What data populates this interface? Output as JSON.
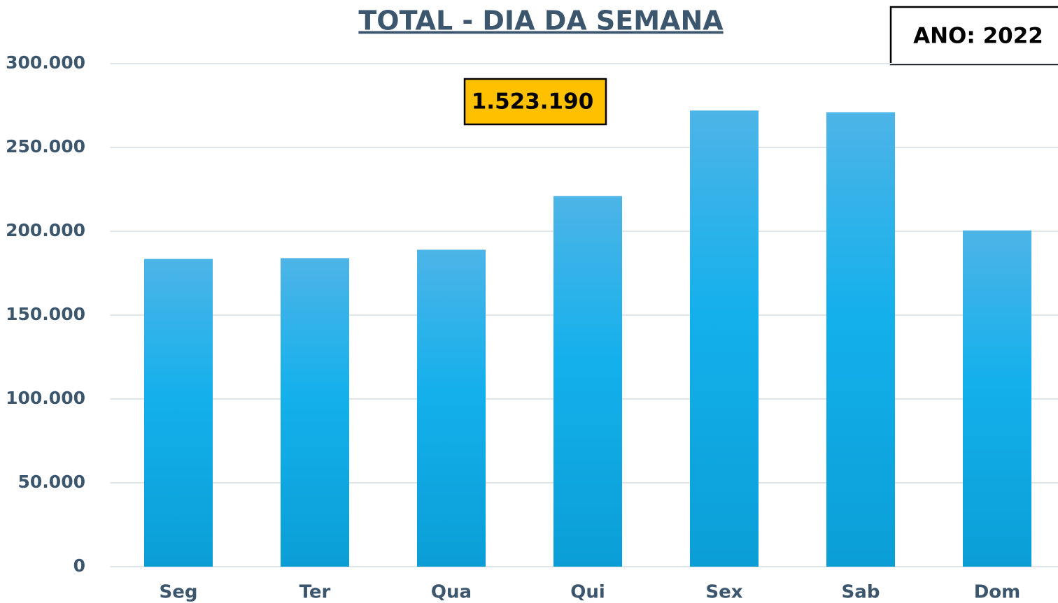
{
  "chart_data": {
    "type": "bar",
    "title": "TOTAL - DIA DA SEMANA",
    "annotations": [
      "1.523.190",
      "ANO: 2022"
    ],
    "categories": [
      "Seg",
      "Ter",
      "Qua",
      "Qui",
      "Sex",
      "Sab",
      "Dom"
    ],
    "values": [
      183500,
      184000,
      189000,
      221000,
      272000,
      271000,
      200500
    ],
    "color": "#13b0ec",
    "ylim": [
      0,
      300000
    ],
    "yticks": [
      0,
      {
        "value": 50000,
        "label": "50.000"
      },
      {
        "value": 100000,
        "label": "100.000"
      },
      {
        "value": 150000,
        "label": "150.000"
      },
      {
        "value": 200000,
        "label": "200.000"
      },
      {
        "value": 250000,
        "label": "250.000"
      },
      {
        "value": 300000,
        "label": "300.000"
      }
    ],
    "grid": true
  }
}
